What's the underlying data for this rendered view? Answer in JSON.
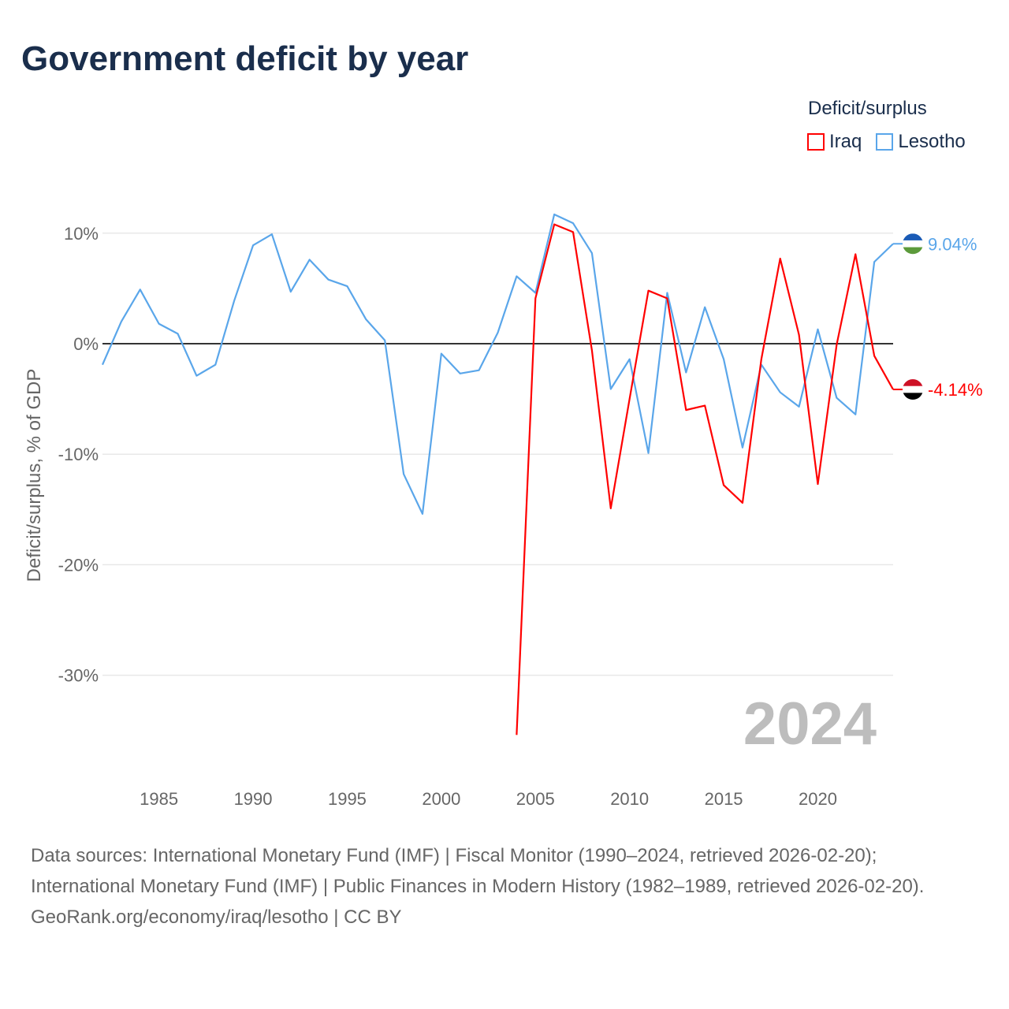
{
  "title": "Government deficit by year",
  "legend": {
    "title": "Deficit/surplus",
    "items": [
      {
        "label": "Iraq",
        "color": "#ff0000"
      },
      {
        "label": "Lesotho",
        "color": "#5aa6ea"
      }
    ]
  },
  "footer": {
    "sources": "Data sources: International Monetary Fund (IMF) | Fiscal Monitor (1990–2024, retrieved 2026-02-20); International Monetary Fund (IMF) | Public Finances in Modern History (1982–1989, retrieved 2026-02-20).",
    "credit": "GeoRank.org/economy/iraq/lesotho | CC BY"
  },
  "chart_data": {
    "type": "line",
    "title": "Government deficit by year",
    "ylabel": "Deficit/surplus, % of GDP",
    "xlabel": "",
    "year_watermark": "2024",
    "xlim": [
      1982,
      2024
    ],
    "ylim": [
      -36,
      12
    ],
    "xticks": [
      1985,
      1990,
      1995,
      2000,
      2005,
      2010,
      2015,
      2020
    ],
    "yticks": [
      {
        "v": 10,
        "label": "10%"
      },
      {
        "v": 0,
        "label": "0%"
      },
      {
        "v": -10,
        "label": "-10%"
      },
      {
        "v": -20,
        "label": "-20%"
      },
      {
        "v": -30,
        "label": "-30%"
      }
    ],
    "series": [
      {
        "name": "Lesotho",
        "color": "#5aa6ea",
        "end_label": "9.04%",
        "flag": "lesotho-flag",
        "x": [
          1982,
          1983,
          1984,
          1985,
          1986,
          1987,
          1988,
          1989,
          1990,
          1991,
          1992,
          1993,
          1994,
          1995,
          1996,
          1997,
          1998,
          1999,
          2000,
          2001,
          2002,
          2003,
          2004,
          2005,
          2006,
          2007,
          2008,
          2009,
          2010,
          2011,
          2012,
          2013,
          2014,
          2015,
          2016,
          2017,
          2018,
          2019,
          2020,
          2021,
          2022,
          2023,
          2024
        ],
        "values": [
          -1.9,
          2.0,
          4.9,
          1.8,
          0.9,
          -2.9,
          -1.9,
          3.9,
          8.9,
          9.9,
          4.7,
          7.6,
          5.8,
          5.2,
          2.2,
          0.3,
          -11.8,
          -15.4,
          -0.9,
          -2.7,
          -2.4,
          1.0,
          6.1,
          4.6,
          11.7,
          10.9,
          8.2,
          -4.1,
          -1.4,
          -9.9,
          4.6,
          -2.6,
          3.3,
          -1.4,
          -9.4,
          -1.9,
          -4.4,
          -5.7,
          1.3,
          -4.9,
          -6.4,
          7.4,
          9.04
        ]
      },
      {
        "name": "Iraq",
        "color": "#ff0000",
        "end_label": "-4.14%",
        "flag": "iraq-flag",
        "x": [
          2004,
          2005,
          2006,
          2007,
          2008,
          2009,
          2010,
          2011,
          2012,
          2013,
          2014,
          2015,
          2016,
          2017,
          2018,
          2019,
          2020,
          2021,
          2022,
          2023,
          2024
        ],
        "values": [
          -35.4,
          4.1,
          10.8,
          10.1,
          -0.6,
          -14.9,
          -5.0,
          4.8,
          4.1,
          -6.0,
          -5.6,
          -12.8,
          -14.4,
          -1.4,
          7.7,
          0.8,
          -12.7,
          -0.1,
          8.1,
          -1.1,
          -4.14
        ]
      }
    ]
  }
}
